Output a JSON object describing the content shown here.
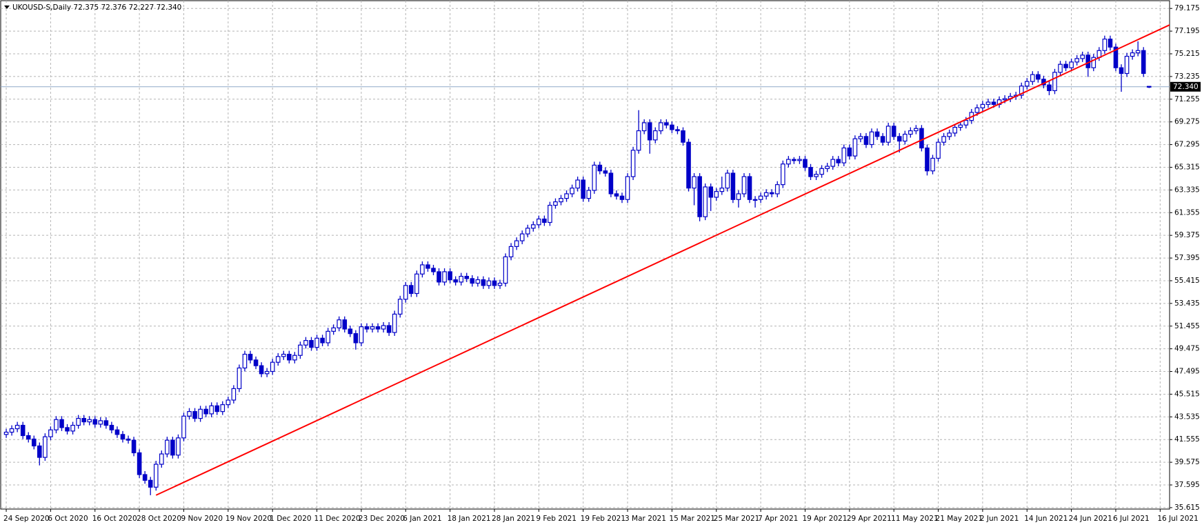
{
  "chart_data": {
    "type": "candlestick",
    "title": "UKOUSD-S,Daily  72.375 72.376 72.227 72.340",
    "color": "#0000c8",
    "grid": true,
    "xlim": [
      -1,
      209.7
    ],
    "ylim": [
      35.49,
      79.85
    ],
    "xticks": [
      {
        "value": 0,
        "label": "24 Sep 2020"
      },
      {
        "value": 8,
        "label": "6 Oct 2020"
      },
      {
        "value": 16,
        "label": "16 Oct 2020"
      },
      {
        "value": 24,
        "label": "28 Oct 2020"
      },
      {
        "value": 32,
        "label": "9 Nov 2020"
      },
      {
        "value": 40,
        "label": "19 Nov 2020"
      },
      {
        "value": 48,
        "label": "1 Dec 2020"
      },
      {
        "value": 56,
        "label": "11 Dec 2020"
      },
      {
        "value": 64,
        "label": "23 Dec 2020"
      },
      {
        "value": 72,
        "label": "6 Jan 2021"
      },
      {
        "value": 80,
        "label": "18 Jan 2021"
      },
      {
        "value": 88,
        "label": "28 Jan 2021"
      },
      {
        "value": 96,
        "label": "9 Feb 2021"
      },
      {
        "value": 104,
        "label": "19 Feb 2021"
      },
      {
        "value": 112,
        "label": "3 Mar 2021"
      },
      {
        "value": 120,
        "label": "15 Mar 2021"
      },
      {
        "value": 128,
        "label": "25 Mar 2021"
      },
      {
        "value": 136,
        "label": "7 Apr 2021"
      },
      {
        "value": 144,
        "label": "19 Apr 2021"
      },
      {
        "value": 152,
        "label": "29 Apr 2021"
      },
      {
        "value": 160,
        "label": "11 May 2021"
      },
      {
        "value": 168,
        "label": "21 May 2021"
      },
      {
        "value": 176,
        "label": "2 Jun 2021"
      },
      {
        "value": 184,
        "label": "14 Jun 2021"
      },
      {
        "value": 192,
        "label": "24 Jun 2021"
      },
      {
        "value": 200,
        "label": "6 Jul 2021"
      },
      {
        "value": 208,
        "label": "16 Jul 2021"
      }
    ],
    "yticks": [
      35.615,
      37.595,
      39.575,
      41.555,
      43.535,
      45.515,
      47.495,
      49.475,
      51.455,
      53.435,
      55.415,
      57.395,
      59.375,
      61.355,
      63.335,
      65.315,
      67.295,
      69.275,
      71.255,
      73.235,
      75.215,
      77.195,
      79.175
    ],
    "open": [
      42.0,
      42.2,
      42.5,
      42.8,
      41.9,
      41.6,
      41.0,
      40.0,
      41.8,
      42.4,
      43.3,
      42.6,
      42.3,
      42.8,
      43.4,
      43.1,
      43.3,
      42.9,
      43.2,
      42.8,
      42.4,
      42.0,
      41.6,
      41.5,
      40.4,
      38.5,
      38.0,
      37.4,
      39.4,
      40.3,
      41.5,
      40.2,
      41.7,
      43.6,
      44.0,
      43.4,
      44.2,
      43.8,
      44.5,
      44.0,
      44.6,
      45.0,
      46.0,
      47.8,
      49.0,
      48.5,
      48.0,
      47.3,
      47.5,
      48.3,
      48.8,
      49.0,
      48.5,
      48.9,
      49.8,
      50.2,
      49.6,
      50.4,
      50.0,
      51.0,
      51.3,
      52.0,
      51.2,
      50.8,
      50.0,
      51.4,
      51.2,
      51.4,
      51.2,
      51.5,
      50.9,
      52.5,
      53.8,
      55.0,
      54.3,
      56.0,
      56.8,
      56.5,
      56.2,
      55.3,
      56.2,
      55.5,
      55.3,
      55.8,
      55.6,
      55.2,
      55.5,
      55.0,
      55.4,
      55.0,
      55.2,
      57.5,
      58.4,
      58.9,
      59.5,
      60.0,
      60.3,
      60.8,
      60.5,
      62.0,
      62.3,
      62.6,
      63.0,
      63.5,
      64.2,
      62.6,
      63.3,
      65.5,
      65.0,
      64.8,
      63.0,
      62.8,
      62.5,
      64.5,
      66.8,
      68.5,
      69.2,
      67.7,
      68.5,
      69.2,
      69.0,
      68.6,
      68.5,
      67.5,
      63.5,
      64.5,
      61.0,
      63.6,
      62.7,
      63.2,
      63.5,
      64.8,
      62.5,
      63.0,
      64.5,
      62.5,
      62.5,
      62.8,
      63.1,
      63.0,
      63.8,
      65.6,
      66.0,
      65.9,
      66.0,
      65.3,
      64.5,
      64.7,
      65.2,
      65.4,
      66.0,
      65.7,
      67.0,
      66.3,
      67.8,
      68.0,
      67.3,
      68.4,
      68.0,
      67.5,
      68.9,
      68.0,
      67.6,
      68.2,
      68.5,
      68.7,
      67.0,
      65.0,
      66.1,
      67.5,
      68.0,
      68.3,
      68.8,
      69.0,
      69.4,
      70.1,
      70.5,
      70.8,
      71.0,
      70.8,
      71.2,
      71.3,
      71.5,
      71.6,
      72.4,
      72.8,
      73.4,
      73.0,
      72.5,
      72.0,
      73.6,
      74.3,
      74.0,
      74.5,
      74.8,
      75.1,
      74.0,
      74.9,
      75.5,
      76.5,
      75.8,
      74.0,
      73.5,
      75.0,
      75.3,
      75.5,
      72.375
    ],
    "high": [
      42.5,
      42.8,
      43.1,
      43.1,
      42.2,
      41.9,
      41.3,
      42.1,
      42.7,
      43.6,
      43.6,
      42.9,
      43.1,
      43.7,
      43.7,
      43.6,
      43.6,
      43.5,
      43.5,
      43.1,
      42.7,
      42.3,
      41.9,
      41.8,
      40.7,
      38.8,
      38.3,
      39.7,
      40.6,
      41.8,
      41.8,
      42.0,
      43.9,
      44.3,
      44.3,
      44.5,
      44.5,
      44.8,
      44.8,
      44.9,
      45.3,
      46.3,
      48.1,
      49.3,
      49.3,
      48.8,
      48.3,
      47.8,
      48.6,
      49.1,
      49.3,
      49.3,
      49.2,
      50.1,
      50.5,
      50.5,
      50.7,
      50.7,
      51.3,
      51.6,
      52.3,
      52.3,
      51.5,
      51.1,
      51.7,
      51.7,
      51.7,
      51.7,
      51.8,
      51.8,
      52.8,
      54.1,
      55.3,
      55.3,
      56.3,
      57.1,
      57.1,
      56.8,
      56.5,
      56.5,
      56.5,
      55.8,
      56.1,
      56.1,
      55.9,
      55.8,
      55.8,
      55.7,
      55.7,
      55.5,
      57.8,
      58.7,
      59.2,
      59.8,
      60.3,
      60.6,
      61.1,
      61.1,
      62.3,
      62.6,
      62.9,
      63.3,
      63.8,
      64.5,
      64.5,
      63.6,
      65.8,
      65.8,
      65.3,
      65.1,
      63.3,
      63.1,
      64.8,
      67.1,
      70.3,
      69.5,
      69.5,
      68.8,
      69.5,
      69.5,
      69.3,
      68.9,
      68.8,
      67.8,
      64.8,
      64.8,
      63.9,
      63.9,
      63.5,
      64.5,
      65.1,
      65.1,
      63.3,
      64.8,
      64.8,
      62.8,
      63.1,
      63.4,
      63.4,
      64.1,
      65.9,
      66.3,
      66.2,
      66.3,
      66.3,
      65.6,
      65.0,
      65.5,
      65.7,
      66.3,
      66.3,
      67.3,
      67.3,
      68.1,
      68.3,
      68.3,
      68.7,
      68.7,
      68.3,
      69.2,
      69.2,
      68.3,
      68.5,
      68.8,
      69.0,
      69.0,
      67.3,
      66.4,
      67.8,
      68.3,
      68.6,
      69.1,
      69.3,
      69.7,
      70.4,
      70.8,
      71.1,
      71.3,
      71.3,
      71.5,
      71.6,
      71.8,
      71.9,
      72.7,
      73.1,
      73.7,
      73.7,
      73.3,
      72.8,
      73.9,
      74.6,
      74.6,
      74.8,
      75.1,
      75.4,
      75.4,
      75.2,
      75.8,
      76.8,
      76.8,
      76.1,
      74.3,
      75.3,
      75.6,
      76.3,
      75.8,
      72.376
    ],
    "low": [
      41.7,
      41.9,
      42.2,
      41.6,
      41.3,
      40.7,
      39.3,
      39.7,
      41.5,
      42.1,
      42.3,
      42.0,
      42.0,
      42.5,
      42.8,
      42.8,
      42.6,
      42.6,
      42.5,
      42.1,
      41.7,
      41.3,
      41.2,
      40.1,
      38.2,
      37.7,
      36.7,
      37.1,
      39.1,
      40.0,
      39.9,
      39.9,
      41.4,
      43.3,
      43.1,
      43.1,
      43.5,
      43.5,
      43.7,
      43.7,
      44.3,
      44.7,
      45.7,
      47.5,
      48.2,
      47.7,
      47.0,
      47.0,
      47.2,
      48.0,
      48.5,
      48.2,
      48.2,
      48.6,
      49.5,
      49.3,
      49.3,
      49.7,
      49.7,
      50.7,
      51.0,
      50.9,
      50.5,
      49.4,
      49.7,
      50.9,
      50.9,
      50.9,
      50.9,
      50.6,
      50.6,
      52.2,
      53.5,
      54.0,
      54.0,
      55.7,
      56.2,
      55.9,
      55.0,
      55.0,
      55.2,
      55.0,
      55.0,
      55.3,
      54.9,
      54.9,
      54.7,
      54.7,
      54.7,
      54.7,
      54.9,
      57.2,
      58.1,
      58.6,
      59.2,
      59.7,
      60.0,
      60.2,
      60.2,
      61.7,
      62.0,
      62.3,
      62.7,
      63.2,
      62.3,
      62.3,
      63.0,
      64.7,
      64.5,
      62.7,
      62.5,
      62.2,
      62.2,
      64.2,
      66.5,
      68.2,
      66.5,
      67.4,
      68.2,
      68.7,
      68.3,
      68.2,
      67.2,
      63.2,
      62.0,
      60.6,
      60.7,
      61.5,
      62.4,
      62.9,
      63.2,
      62.2,
      61.8,
      62.7,
      62.2,
      61.8,
      62.2,
      62.5,
      62.7,
      62.7,
      63.5,
      65.3,
      65.6,
      65.6,
      65.0,
      64.2,
      64.2,
      64.4,
      64.9,
      65.1,
      65.4,
      65.4,
      66.0,
      66.0,
      67.5,
      67.0,
      67.0,
      67.7,
      67.2,
      67.2,
      67.7,
      66.6,
      67.3,
      67.9,
      68.2,
      66.7,
      64.6,
      64.7,
      65.8,
      67.2,
      67.7,
      68.0,
      68.5,
      68.7,
      69.1,
      69.8,
      70.2,
      70.5,
      70.5,
      70.5,
      70.9,
      71.0,
      71.2,
      71.3,
      72.1,
      72.5,
      72.7,
      72.2,
      71.6,
      71.7,
      73.3,
      73.7,
      73.7,
      74.2,
      74.5,
      73.2,
      73.7,
      74.6,
      75.2,
      75.5,
      73.7,
      71.9,
      73.2,
      74.7,
      75.0,
      73.2,
      72.227
    ],
    "close": [
      42.2,
      42.5,
      42.8,
      41.9,
      41.6,
      41.0,
      40.0,
      41.8,
      42.4,
      43.3,
      42.6,
      42.3,
      42.8,
      43.4,
      43.1,
      43.3,
      42.9,
      43.2,
      42.8,
      42.4,
      42.0,
      41.6,
      41.5,
      40.4,
      38.5,
      38.0,
      37.4,
      39.4,
      40.3,
      41.5,
      40.2,
      41.7,
      43.6,
      44.0,
      43.4,
      44.2,
      43.8,
      44.5,
      44.0,
      44.6,
      45.0,
      46.0,
      47.8,
      49.0,
      48.5,
      48.0,
      47.3,
      47.5,
      48.3,
      48.8,
      49.0,
      48.5,
      48.9,
      49.8,
      50.2,
      49.6,
      50.4,
      50.0,
      51.0,
      51.3,
      52.0,
      51.2,
      50.8,
      50.0,
      51.4,
      51.2,
      51.4,
      51.2,
      51.5,
      50.9,
      52.5,
      53.8,
      55.0,
      54.3,
      56.0,
      56.8,
      56.5,
      56.2,
      55.3,
      56.2,
      55.5,
      55.3,
      55.8,
      55.6,
      55.2,
      55.5,
      55.0,
      55.4,
      55.0,
      55.2,
      57.5,
      58.4,
      58.9,
      59.5,
      60.0,
      60.3,
      60.8,
      60.5,
      62.0,
      62.3,
      62.6,
      63.0,
      63.5,
      64.2,
      62.6,
      63.3,
      65.5,
      65.0,
      64.8,
      63.0,
      62.8,
      62.5,
      64.5,
      66.8,
      68.5,
      69.2,
      67.7,
      68.5,
      69.2,
      69.0,
      68.6,
      68.5,
      67.5,
      63.5,
      64.5,
      61.0,
      63.6,
      62.7,
      63.2,
      63.5,
      64.8,
      62.5,
      63.0,
      64.5,
      62.5,
      62.5,
      62.8,
      63.1,
      63.0,
      63.8,
      65.6,
      66.0,
      65.9,
      66.0,
      65.3,
      64.5,
      64.7,
      65.2,
      65.4,
      66.0,
      65.7,
      67.0,
      66.3,
      67.8,
      68.0,
      67.3,
      68.4,
      68.0,
      67.5,
      68.9,
      68.0,
      67.6,
      68.2,
      68.5,
      68.7,
      67.0,
      65.0,
      66.1,
      67.5,
      68.0,
      68.3,
      68.8,
      69.0,
      69.4,
      70.1,
      70.5,
      70.8,
      71.0,
      70.8,
      71.2,
      71.3,
      71.5,
      71.6,
      72.4,
      72.8,
      73.4,
      73.0,
      72.5,
      72.0,
      73.6,
      74.3,
      74.0,
      74.5,
      74.8,
      75.1,
      74.0,
      74.9,
      75.5,
      76.5,
      75.8,
      74.0,
      73.5,
      75.0,
      75.3,
      75.5,
      73.5,
      72.34
    ],
    "trendline": {
      "color": "#ff0000",
      "x": [
        27,
        214
      ],
      "values": [
        36.7,
        78.7
      ]
    },
    "price_line": {
      "value": 72.34,
      "label": "72.340",
      "color": "#8fa8c8"
    }
  }
}
